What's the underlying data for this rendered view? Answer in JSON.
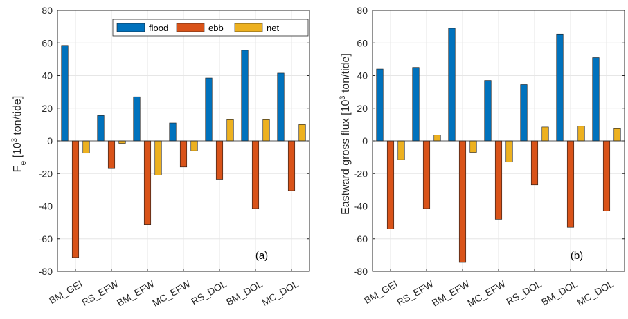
{
  "chart_data": [
    {
      "type": "bar",
      "panel_label": "(a)",
      "ylabel": "F_e [10^3 ton/tide]",
      "ylabel_parts": {
        "main": "F",
        "sub": "e",
        "pre": " [10",
        "sup": "3",
        "post": " ton/tide]"
      },
      "categories": [
        "BM_GEI",
        "RS_EFW",
        "BM_EFW",
        "MC_EFW",
        "RS_DOL",
        "BM_DOL",
        "MC_DOL"
      ],
      "series": [
        {
          "name": "flood",
          "color": "#0072BD",
          "values": [
            58.5,
            15.5,
            27,
            11,
            38.5,
            55.5,
            41.5
          ]
        },
        {
          "name": "ebb",
          "color": "#D95319",
          "values": [
            -71.5,
            -17,
            -51.5,
            -16,
            -23.5,
            -41.5,
            -30.5
          ]
        },
        {
          "name": "net",
          "color": "#EDB120",
          "values": [
            -7.5,
            -1.5,
            -21,
            -6,
            13,
            13,
            10
          ]
        }
      ],
      "ylim": [
        -80,
        80
      ],
      "yticks": [
        "-80",
        "-60",
        "-40",
        "-20",
        "0",
        "20",
        "40",
        "60",
        "80"
      ],
      "grid": true,
      "legend": "top-right"
    },
    {
      "type": "bar",
      "panel_label": "(b)",
      "ylabel": "Eastward gross flux [10^3 ton/tide]",
      "ylabel_parts": {
        "main": "Eastward gross flux",
        "sub": "",
        "pre": " [10",
        "sup": "3",
        "post": " ton/tide]"
      },
      "categories": [
        "BM_GEI",
        "RS_EFW",
        "BM_EFW",
        "MC_EFW",
        "RS_DOL",
        "BM_DOL",
        "MC_DOL"
      ],
      "series": [
        {
          "name": "flood",
          "color": "#0072BD",
          "values": [
            44,
            45,
            69,
            37,
            34.5,
            65.5,
            51
          ]
        },
        {
          "name": "ebb",
          "color": "#D95319",
          "values": [
            -54,
            -41.5,
            -74.5,
            -48,
            -27,
            -53,
            -43
          ]
        },
        {
          "name": "net",
          "color": "#EDB120",
          "values": [
            -11.5,
            3.5,
            -7,
            -13,
            8.5,
            9,
            7.5
          ]
        }
      ],
      "ylim": [
        -80,
        80
      ],
      "yticks": [
        "-80",
        "-60",
        "-40",
        "-20",
        "0",
        "20",
        "40",
        "60",
        "80"
      ],
      "grid": true,
      "legend": "none"
    }
  ]
}
